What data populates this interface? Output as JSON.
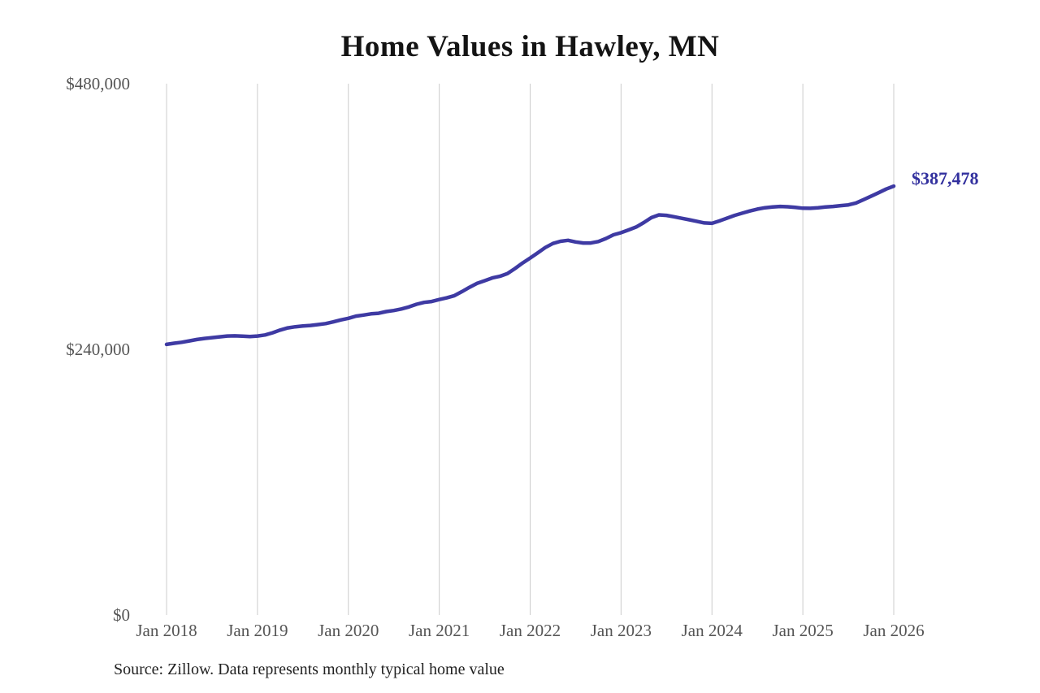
{
  "page": {
    "background": "#ffffff"
  },
  "chart_data": {
    "type": "line",
    "title": "Home Values in Hawley, MN",
    "xlabel": "",
    "ylabel": "",
    "frequency": "monthly",
    "x_range": [
      "2018-01",
      "2026-01"
    ],
    "ylim": [
      0,
      480000
    ],
    "grid": "vertical-only",
    "legend": "none",
    "x_tick_labels": [
      "Jan 2018",
      "Jan 2019",
      "Jan 2020",
      "Jan 2021",
      "Jan 2022",
      "Jan 2023",
      "Jan 2024",
      "Jan 2025",
      "Jan 2026"
    ],
    "y_ticks": [
      {
        "label": "$0",
        "value": 0
      },
      {
        "label": "$240,000",
        "value": 240000
      },
      {
        "label": "$480,000",
        "value": 480000
      }
    ],
    "end_label": "$387,478",
    "latest_value": 387478,
    "series": [
      {
        "name": "Typical home value",
        "color": "#3e3aa3",
        "values": [
          244500,
          245500,
          246400,
          247600,
          248900,
          249800,
          250600,
          251300,
          252000,
          252200,
          251900,
          251600,
          252000,
          253000,
          255000,
          257400,
          259400,
          260400,
          261100,
          261600,
          262400,
          263300,
          264800,
          266600,
          268000,
          270000,
          271000,
          272100,
          272600,
          274100,
          275100,
          276500,
          278300,
          280700,
          282400,
          283200,
          285000,
          286500,
          288500,
          292200,
          296100,
          299600,
          302000,
          304500,
          306000,
          308500,
          313000,
          318000,
          322500,
          327100,
          332000,
          335600,
          337600,
          338500,
          337000,
          336100,
          336100,
          337400,
          340100,
          343500,
          345400,
          347900,
          350500,
          354500,
          359000,
          361500,
          361000,
          359800,
          358400,
          357100,
          355700,
          354200,
          353800,
          356000,
          358500,
          361000,
          363000,
          365000,
          366700,
          367900,
          368600,
          369100,
          368800,
          368200,
          367500,
          367400,
          367900,
          368600,
          369100,
          369800,
          370500,
          372200,
          375200,
          378300,
          381500,
          384800,
          387478
        ]
      }
    ]
  },
  "colors": {
    "line": "#3e3aa3",
    "end_label": "#32309e",
    "title": "#141414",
    "axis_label": "#555555",
    "gridline": "#cccccc",
    "source": "#222222"
  },
  "footer": {
    "source_text": "Source: Zillow. Data represents monthly typical home value"
  }
}
